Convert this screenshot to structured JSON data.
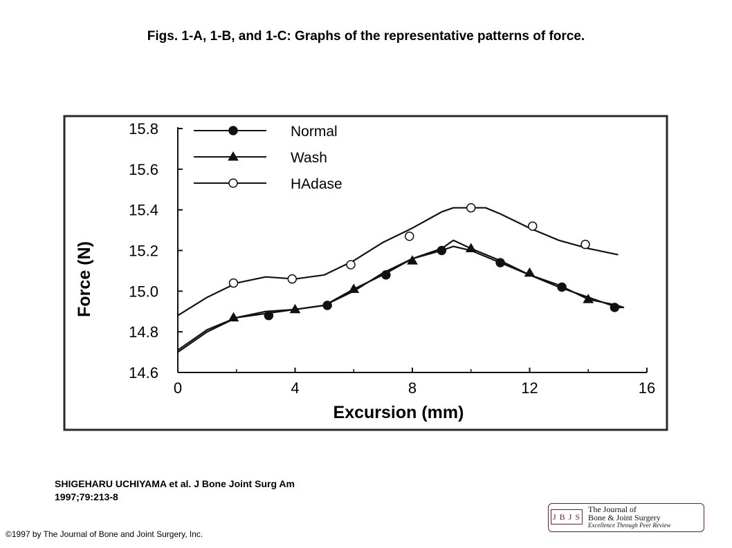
{
  "slide": {
    "title": "Figs. 1-A, 1-B, and 1-C: Graphs of the representative patterns of force.",
    "citation_line1": "SHIGEHARU UCHIYAMA et al. J Bone Joint Surg Am",
    "citation_line2": "1997;79:213-8",
    "copyright": "©1997 by The Journal of Bone and Joint Surgery, Inc."
  },
  "logo": {
    "badge": "J B J S",
    "line1": "The Journal of",
    "line2": "Bone & Joint Surgery",
    "line3": "Excellence Through Peer Review"
  },
  "chart_data": {
    "type": "line",
    "xlabel": "Excursion (mm)",
    "ylabel": "Force (N)",
    "xlim": [
      0,
      16
    ],
    "ylim": [
      14.6,
      15.8
    ],
    "xticks": [
      "0",
      "4",
      "8",
      "12",
      "16"
    ],
    "yticks": [
      "14.6",
      "14.8",
      "15.0",
      "15.2",
      "15.4",
      "15.6",
      "15.8"
    ],
    "legend_position": "top-left",
    "grid": false,
    "series": [
      {
        "name": "Normal",
        "marker": "filled-circle",
        "x": [
          0,
          1,
          2,
          3,
          4,
          5,
          6,
          7,
          8,
          9,
          9.4,
          10,
          11,
          12,
          13,
          14,
          15,
          15.2
        ],
        "y": [
          14.71,
          14.81,
          14.87,
          14.89,
          14.91,
          14.93,
          15.01,
          15.08,
          15.16,
          15.2,
          15.22,
          15.2,
          15.14,
          15.08,
          15.02,
          14.97,
          14.92,
          14.92
        ],
        "marker_x": [
          3.1,
          5.1,
          7.1,
          9.0,
          11.0,
          13.1,
          14.9
        ],
        "marker_y": [
          14.88,
          14.93,
          15.08,
          15.2,
          15.14,
          15.02,
          14.92
        ]
      },
      {
        "name": "Wash",
        "marker": "filled-triangle",
        "x": [
          0,
          1,
          2,
          3,
          4,
          5,
          6,
          7,
          8,
          9,
          9.4,
          10,
          11,
          12,
          13,
          14,
          15,
          15.2
        ],
        "y": [
          14.7,
          14.8,
          14.87,
          14.9,
          14.91,
          14.93,
          15.0,
          15.09,
          15.16,
          15.21,
          15.25,
          15.21,
          15.15,
          15.08,
          15.03,
          14.96,
          14.93,
          14.92
        ],
        "marker_x": [
          1.9,
          4.0,
          6.0,
          8.0,
          10.0,
          12.0,
          14.0
        ],
        "marker_y": [
          14.87,
          14.91,
          15.01,
          15.15,
          15.21,
          15.09,
          14.96
        ]
      },
      {
        "name": "HAdase",
        "marker": "open-circle",
        "x": [
          0,
          1,
          2,
          3,
          4,
          5,
          6,
          7,
          8,
          9,
          9.4,
          10,
          10.5,
          11,
          12,
          13,
          14,
          15
        ],
        "y": [
          14.88,
          14.97,
          15.04,
          15.07,
          15.06,
          15.08,
          15.15,
          15.24,
          15.31,
          15.39,
          15.41,
          15.41,
          15.41,
          15.38,
          15.31,
          15.25,
          15.21,
          15.18
        ],
        "marker_x": [
          1.9,
          3.9,
          5.9,
          7.9,
          10.0,
          12.1,
          13.9
        ],
        "marker_y": [
          15.04,
          15.06,
          15.13,
          15.27,
          15.41,
          15.32,
          15.23
        ]
      }
    ]
  }
}
